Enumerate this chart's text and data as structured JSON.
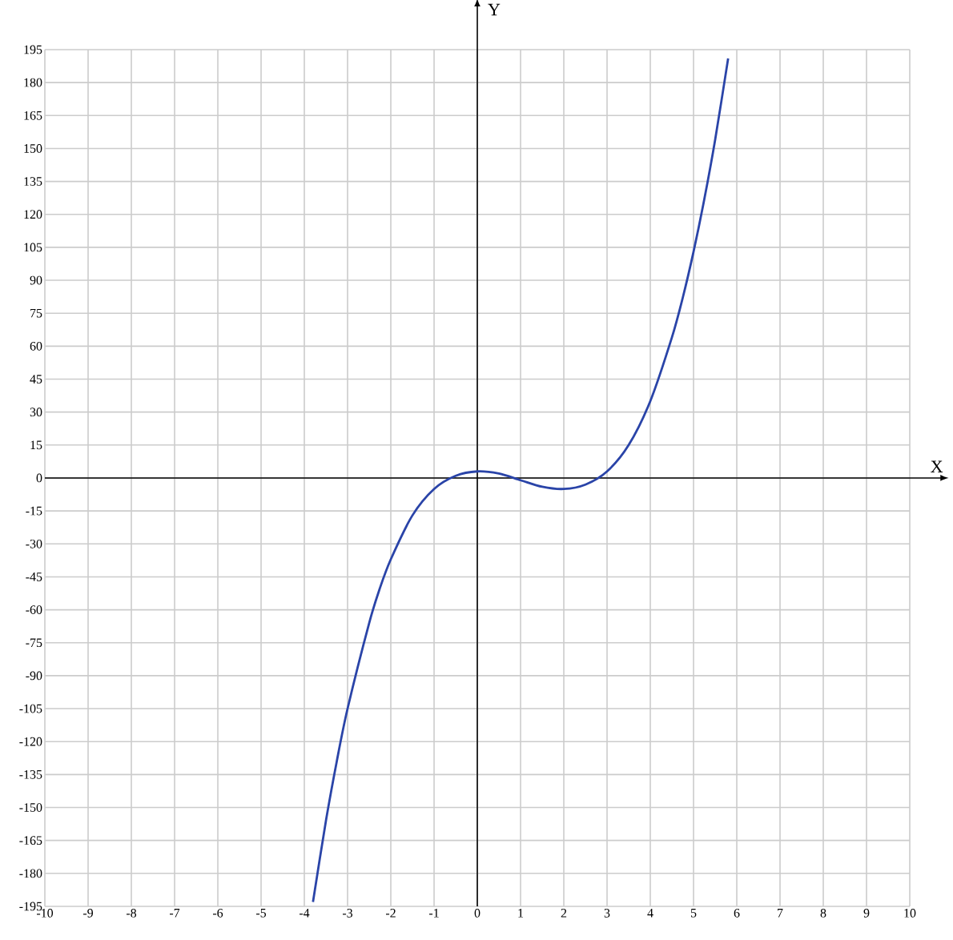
{
  "chart_data": {
    "type": "line",
    "xlabel": "X",
    "ylabel": "Y",
    "x": [
      -3.8,
      -3.5,
      -3.25,
      -3,
      -2.5,
      -2.25,
      -2,
      -1.5,
      -1,
      -0.5,
      0,
      0.5,
      1,
      1.5,
      2,
      2.5,
      3,
      3.5,
      4,
      4.5,
      4.75,
      5,
      5.25,
      5.5,
      5.8
    ],
    "values": [
      -193,
      -156,
      -129,
      -105,
      -66,
      -50,
      -37,
      -17,
      -5,
      1,
      3,
      2,
      -1,
      -4,
      -5,
      -3,
      3,
      15,
      35,
      64,
      82,
      103,
      127,
      154,
      191
    ],
    "color": "#2a44a8",
    "xlim": [
      -10,
      10
    ],
    "ylim": [
      -195,
      195
    ],
    "xticks": [
      -10,
      -9,
      -8,
      -7,
      -6,
      -5,
      -4,
      -3,
      -2,
      -1,
      0,
      1,
      2,
      3,
      4,
      5,
      6,
      7,
      8,
      9,
      10
    ],
    "yticks": [
      -195,
      -180,
      -165,
      -150,
      -135,
      -120,
      -105,
      -90,
      -75,
      -60,
      -45,
      -30,
      -15,
      0,
      15,
      30,
      45,
      60,
      75,
      90,
      105,
      120,
      135,
      150,
      165,
      180,
      195
    ],
    "grid": true
  }
}
